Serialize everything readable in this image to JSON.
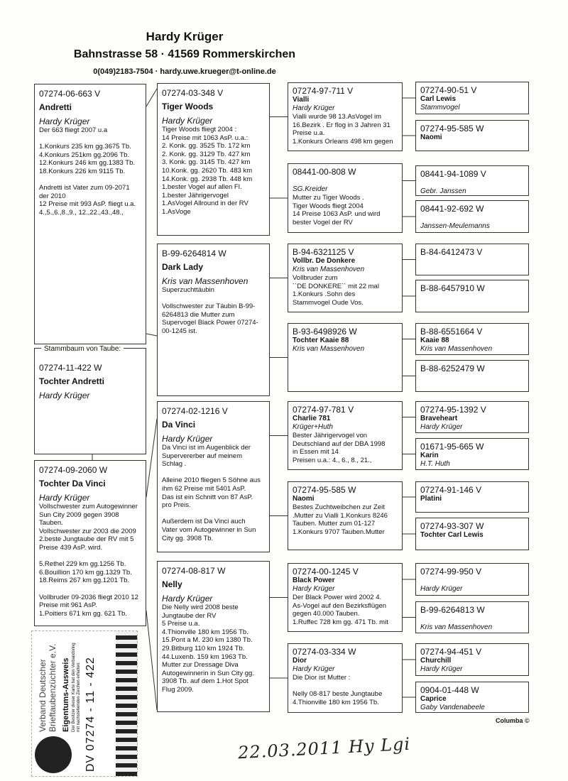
{
  "header": {
    "name": "Hardy Krüger",
    "address": "Bahnstrasse 58  ·  41569 Rommerskirchen",
    "contact": "0(049)2183-7504  ·  hardy.uwe.krueger@t-online.de"
  },
  "subject_legend": "Stammbaum von Taube:",
  "pigeons": {
    "subject": {
      "ring": "07274-11-422 W",
      "name": "Tochter Andretti",
      "breeder": "Hardy Krüger",
      "notes": ""
    },
    "sire": {
      "ring": "07274-06-663 V",
      "name": "Andretti",
      "breeder": "Hardy Krüger",
      "notes": "Der 663 fliegt 2007 u.a\n\n1.Konkurs 235 km gg.3675 Tb.\n4.Konkurs 251km gg.2096 Tb.\n12.Konkurs 246 km gg.1383 Tb.\n18.Konkurs 226 km 9115 Tb.\n\nAndretti ist Vater zum 09-2071\nder 2010\n12 Preise mit 993 AsP. fliegt u.a.\n4.,5.,6.,8.,9., 12.,22.,43.,48.,"
    },
    "dam": {
      "ring": "07274-09-2060 W",
      "name": "Tochter Da Vinci",
      "breeder": "Hardy Krüger",
      "notes": "Vollschwester zum Autogewinner\nSun City 2009 gegen 3908\nTauben.\nVollschwester zur 2003 die 2009\n2.beste Jungtaube der RV mit   5\nPreise 439 AsP. wird.\n\n5.Rethel 229 km gg.1256 Tb.\n6.Bouillion 170 km gg.1329 Tb.\n18.Reims 267 km gg.1201 Tb.\n\nVollbruder 09-2036 fliegt 2010 12\nPreise mit 961 AsP.\n1.Poitiers 671 km gg. 621 Tb."
    },
    "gen2": [
      {
        "ring": "07274-03-348 V",
        "name": "Tiger Woods",
        "breeder": "Hardy Krüger",
        "notes": "Tiger Woods fliegt 2004 :\n14 Preise mit 1063 AsP. u.a.:\n2. Konk. gg. 3525 Tb. 172 km\n2. Konk. gg. 3129 Tb. 427 km\n3. Konk. gg. 3145 Tb. 427 km\n10.Konk. gg. 2620 Tb. 483 km\n14.Konk. gg. 2938 Tb. 448 km\n1.bester Vogel auf allen Fl.\n1.bester Jährigervogel\n1.AsVogel Allround in der RV\n1.AsVoge"
      },
      {
        "ring": "B-99-6264814 W",
        "name": "Dark Lady",
        "breeder": "Kris van Massenhoven",
        "notes": "Superzuchttäubin\n\nVollschwester zur Täubin B-99-\n6264813 die Mutter zum\nSupervogel Black Power 07274-\n00-1245 ist."
      },
      {
        "ring": "07274-02-1216 V",
        "name": "Da Vinci",
        "breeder": "Hardy Krüger",
        "notes": "Da Vinci ist im Augenblick der\nSupervererber auf meinem\nSchlag .\n\nAlleine 2010 fliegen 5 Söhne aus\nihm 62 Preise mit  5401 AsP.\nDas ist ein Schnitt von 87 AsP.\npro Preis.\n\nAußerdem ist Da Vinci auch\nVater vom Autogewinner in Sun\nCity gg. 3908 Tb."
      },
      {
        "ring": "07274-08-817 W",
        "name": "Nelly",
        "breeder": "Hardy Krüger",
        "notes": "Die Nelly wird 2008 beste\nJungtaube der RV\n5 Preise u.a.\n4.Thionville 180 km 1956 Tb.\n15.Pont a M. 230 km 1380 Tb.\n29.Bitburg 110 km 1924 Tb.\n44.Luxenb. 159 km 1963 Tb.\nMutter zur Dressage Diva\nAutogewinnerin in Sun City gg.\n3908 Tb. auf dem 1.Hot Spot\nFlug 2009."
      }
    ],
    "gen3": [
      {
        "ring": "07274-97-711 V",
        "name": "Vialli",
        "breeder": "Hardy Krüger",
        "notes": "Vialli wurde 98  13.AsVogel im\n16.Bezirk . Er flog in 3 Jahren 31\nPreise u.a.\n1.Konkurs Orleans 498 km gegen"
      },
      {
        "ring": "08441-00-808 W",
        "name": "",
        "breeder": "SG.Kreider",
        "notes": "Mutter zu Tiger Woods .\nTiger Woods fliegt 2004\n14 Preise 1063 AsP. und wird\nbester Vogel der RV"
      },
      {
        "ring": "B-94-6321125 V",
        "name": "Vollbr.  De Donkere",
        "breeder": "Kris van Massenhoven",
        "notes": "Vollbruder zum\n``DE DONKERE`` mit 22 mal\n1.Konkurs .Sohn des\nStammvogel Oude Vos."
      },
      {
        "ring": "B-93-6498926 W",
        "name": "Tochter Kaaie 88",
        "breeder": "Kris van Massenhoven",
        "notes": ""
      },
      {
        "ring": "07274-97-781 V",
        "name": "Charlie 781",
        "breeder": "Krüger+Huth",
        "notes": "Bester Jährigervogel von\nDeutschland auf der DBA 1998\nin Essen mit 14\nPreisen u.a.: 4., 6., 8., 21.,"
      },
      {
        "ring": "07274-95-585 W",
        "name": "Naomi",
        "breeder": "",
        "notes": "Bestes Zuchtweibchen zur Zeit\n.Mutter zu Vialli 1.Konkurs 8246\nTauben. Mutter zum 01-127\n1.Konkurs 9707 Tauben.Mutter"
      },
      {
        "ring": "07274-00-1245 V",
        "name": "Black Power",
        "breeder": "Hardy Krüger",
        "notes": "Der Black Power wird 2002 4.\nAs-Vogel auf den Bezirksflügen\ngegen 40.000 Tauben.\n1.Ruffec 728 km gg. 471 Tb. mit"
      },
      {
        "ring": "07274-03-334 W",
        "name": "Dior",
        "breeder": "Hardy Krüger",
        "notes": "Die Dior ist Mutter :\n\nNelly 08-817 beste Jungtaube\n4.Thionville 180 km 1956 Tb."
      }
    ],
    "gen4": [
      {
        "ring": "07274-90-51 V",
        "name": "Carl Lewis",
        "breeder": "Stammvogel"
      },
      {
        "ring": "07274-95-585 W",
        "name": "Naomi",
        "breeder": ""
      },
      {
        "ring": "08441-94-1089 V",
        "name": "",
        "breeder": "Gebr. Janssen"
      },
      {
        "ring": "08441-92-692 W",
        "name": "",
        "breeder": "Janssen-Meulemanns"
      },
      {
        "ring": "B-84-6412473 V",
        "name": "",
        "breeder": ""
      },
      {
        "ring": "B-88-6457910 W",
        "name": "",
        "breeder": ""
      },
      {
        "ring": "B-88-6551664 V",
        "name": "Kaaie 88",
        "breeder": "Kris van Massenhoven"
      },
      {
        "ring": "B-88-6252479 W",
        "name": "",
        "breeder": ""
      },
      {
        "ring": "07274-95-1392 V",
        "name": "Braveheart",
        "breeder": "Hardy Krüger"
      },
      {
        "ring": "01671-95-665 W",
        "name": "Karin",
        "breeder": "H.T. Huth"
      },
      {
        "ring": "07274-91-146 V",
        "name": "Platini",
        "breeder": ""
      },
      {
        "ring": "07274-93-307 W",
        "name": "Tochter Carl Lewis",
        "breeder": ""
      },
      {
        "ring": "07274-99-950 V",
        "name": "",
        "breeder": "Hardy Krüger"
      },
      {
        "ring": "B-99-6264813 W",
        "name": "",
        "breeder": "Kris van Massenhoven"
      },
      {
        "ring": "07274-94-451 V",
        "name": "Churchill",
        "breeder": "Hardy Krüger"
      },
      {
        "ring": "0904-01-448 W",
        "name": "Caprice",
        "breeder": "Gaby Vandenabeele"
      }
    ]
  },
  "stamp": {
    "organization": "Verband Deutscher Brieftaubenzüchter e.V.",
    "title": "Eigentums-Ausweis",
    "subtitle": "Der Besitzer dieser Karte hat den Verbandsring mit nachstehenden Zeichen erhalten:",
    "ring": "DV 07274 - 11 - 422"
  },
  "footer": {
    "copyright": "Columba ©",
    "signature": "22.03.2011  Hy Lgi"
  }
}
